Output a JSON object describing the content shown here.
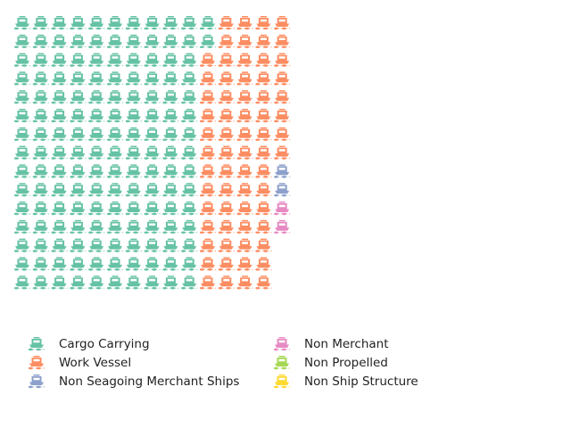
{
  "chart_data": {
    "type": "waffle",
    "icon": "ship-icon",
    "grid": {
      "rows": 15,
      "columns": 15
    },
    "fill_order": "column-major from top-left, top to bottom",
    "categories": [
      {
        "name": "Cargo Carrying",
        "count": 152,
        "color": "#66c2a5"
      },
      {
        "name": "Work Vessel",
        "count": 66,
        "color": "#fc8d62"
      },
      {
        "name": "Non Seagoing Merchant Ships",
        "count": 2,
        "color": "#8da0cb"
      },
      {
        "name": "Non Merchant",
        "count": 2,
        "color": "#e78ac3"
      },
      {
        "name": "Non Propelled",
        "count": 0,
        "color": "#a6d854"
      },
      {
        "name": "Non Ship Structure",
        "count": 0,
        "color": "#ffd92f"
      }
    ],
    "legend": {
      "position": "bottom-left",
      "columns": 2
    }
  }
}
